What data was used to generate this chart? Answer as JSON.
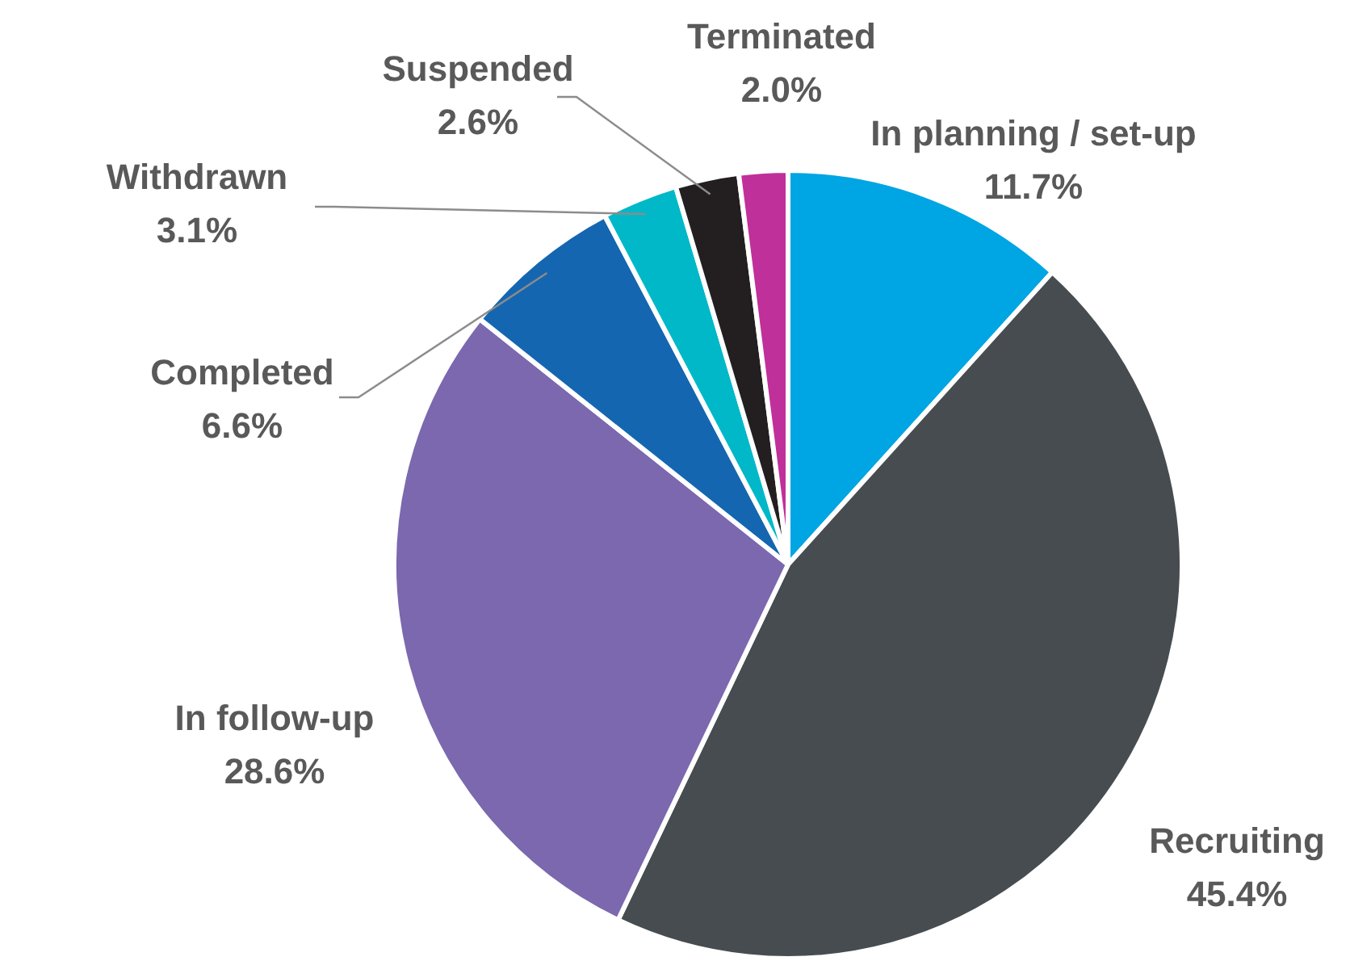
{
  "chart_data": {
    "type": "pie",
    "categories": [
      "In planning / set-up",
      "Recruiting",
      "In follow-up",
      "Completed",
      "Withdrawn",
      "Suspended",
      "Terminated"
    ],
    "values": [
      11.7,
      45.4,
      28.6,
      6.6,
      3.1,
      2.6,
      2.0
    ],
    "value_labels": [
      "11.7%",
      "45.4%",
      "28.6%",
      "6.6%",
      "3.1%",
      "2.6%",
      "2.0%"
    ],
    "colors": [
      "#00a5e3",
      "#464c4f",
      "#7b68ae",
      "#1566b0",
      "#00b8c8",
      "#231f20",
      "#c0309a"
    ],
    "legend": false
  }
}
